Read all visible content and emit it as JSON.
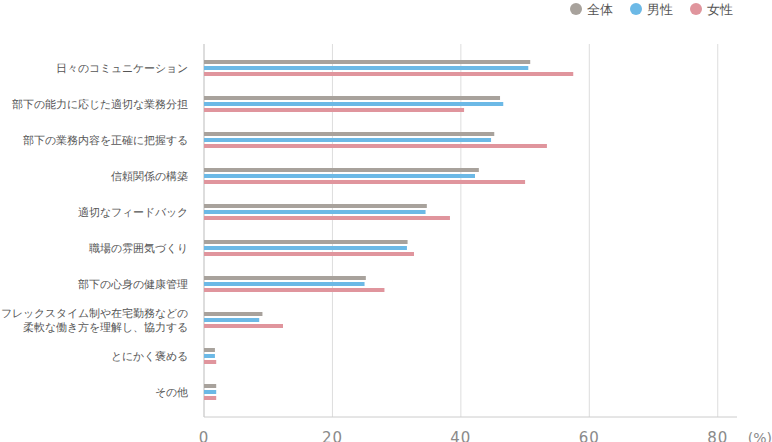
{
  "chart_data": {
    "type": "bar",
    "orientation": "horizontal",
    "categories": [
      "日々のコミュニケーション",
      "部下の能力に応じた適切な業務分担",
      "部下の業務内容を正確に把握する",
      "信頼関係の構築",
      "適切なフィードバック",
      "職場の雰囲気づくり",
      "部下の心身の健康管理",
      "フレックスタイム制や在宅勤務などの\n柔軟な働き方を理解し、協力する",
      "とにかく褒める",
      "その他"
    ],
    "series": [
      {
        "name": "全体",
        "color": "#a8a29c",
        "values": [
          50.8,
          46.1,
          45.2,
          42.8,
          34.7,
          31.7,
          25.2,
          9.1,
          1.7,
          1.9
        ]
      },
      {
        "name": "男性",
        "color": "#6cb9e6",
        "values": [
          50.5,
          46.6,
          44.7,
          42.2,
          34.5,
          31.6,
          25.0,
          8.6,
          1.7,
          1.9
        ]
      },
      {
        "name": "女性",
        "color": "#e0959d",
        "values": [
          57.5,
          40.5,
          53.4,
          50.0,
          38.3,
          32.7,
          28.1,
          12.3,
          1.9,
          1.9
        ]
      }
    ],
    "xlim": [
      0,
      83
    ],
    "xticks": [
      0,
      20,
      40,
      60,
      80
    ],
    "x_label": "(%)",
    "grid": true,
    "legend": "top-right"
  }
}
